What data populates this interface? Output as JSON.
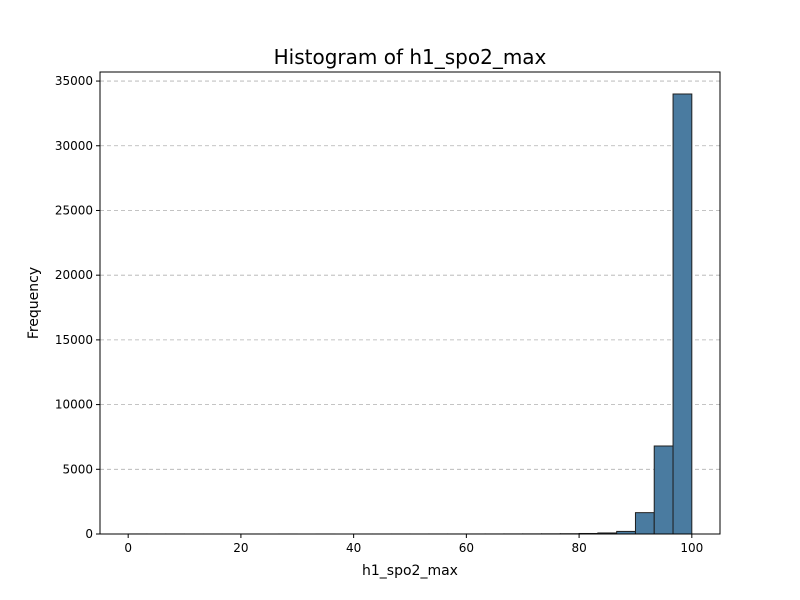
{
  "chart_data": {
    "type": "bar",
    "title": "Histogram of h1_spo2_max",
    "xlabel": "h1_spo2_max",
    "ylabel": "Frequency",
    "xlim": [
      -5,
      105
    ],
    "ylim": [
      0,
      35700
    ],
    "xticks": [
      0,
      20,
      40,
      60,
      80,
      100
    ],
    "yticks": [
      0,
      5000,
      10000,
      15000,
      20000,
      25000,
      30000,
      35000
    ],
    "grid": "y-dashed",
    "bar_color": "#4a7ba0",
    "bins": [
      {
        "x0": 0.0,
        "x1": 3.33,
        "count": 3
      },
      {
        "x0": 3.33,
        "x1": 6.67,
        "count": 2
      },
      {
        "x0": 6.67,
        "x1": 10.0,
        "count": 2
      },
      {
        "x0": 10.0,
        "x1": 13.33,
        "count": 1
      },
      {
        "x0": 13.33,
        "x1": 16.67,
        "count": 1
      },
      {
        "x0": 16.67,
        "x1": 20.0,
        "count": 1
      },
      {
        "x0": 20.0,
        "x1": 23.33,
        "count": 1
      },
      {
        "x0": 23.33,
        "x1": 26.67,
        "count": 0
      },
      {
        "x0": 26.67,
        "x1": 30.0,
        "count": 1
      },
      {
        "x0": 30.0,
        "x1": 33.33,
        "count": 0
      },
      {
        "x0": 33.33,
        "x1": 36.67,
        "count": 1
      },
      {
        "x0": 36.67,
        "x1": 40.0,
        "count": 0
      },
      {
        "x0": 40.0,
        "x1": 43.33,
        "count": 1
      },
      {
        "x0": 43.33,
        "x1": 46.67,
        "count": 1
      },
      {
        "x0": 46.67,
        "x1": 50.0,
        "count": 2
      },
      {
        "x0": 50.0,
        "x1": 53.33,
        "count": 1
      },
      {
        "x0": 53.33,
        "x1": 56.67,
        "count": 2
      },
      {
        "x0": 56.67,
        "x1": 60.0,
        "count": 2
      },
      {
        "x0": 60.0,
        "x1": 63.33,
        "count": 3
      },
      {
        "x0": 63.33,
        "x1": 66.67,
        "count": 4
      },
      {
        "x0": 66.67,
        "x1": 70.0,
        "count": 6
      },
      {
        "x0": 70.0,
        "x1": 73.33,
        "count": 8
      },
      {
        "x0": 73.33,
        "x1": 76.67,
        "count": 12
      },
      {
        "x0": 76.67,
        "x1": 80.0,
        "count": 20
      },
      {
        "x0": 80.0,
        "x1": 83.33,
        "count": 40
      },
      {
        "x0": 83.33,
        "x1": 86.67,
        "count": 80
      },
      {
        "x0": 86.67,
        "x1": 90.0,
        "count": 200
      },
      {
        "x0": 90.0,
        "x1": 93.33,
        "count": 1650
      },
      {
        "x0": 93.33,
        "x1": 96.67,
        "count": 6800
      },
      {
        "x0": 96.67,
        "x1": 100.0,
        "count": 34000
      }
    ]
  }
}
